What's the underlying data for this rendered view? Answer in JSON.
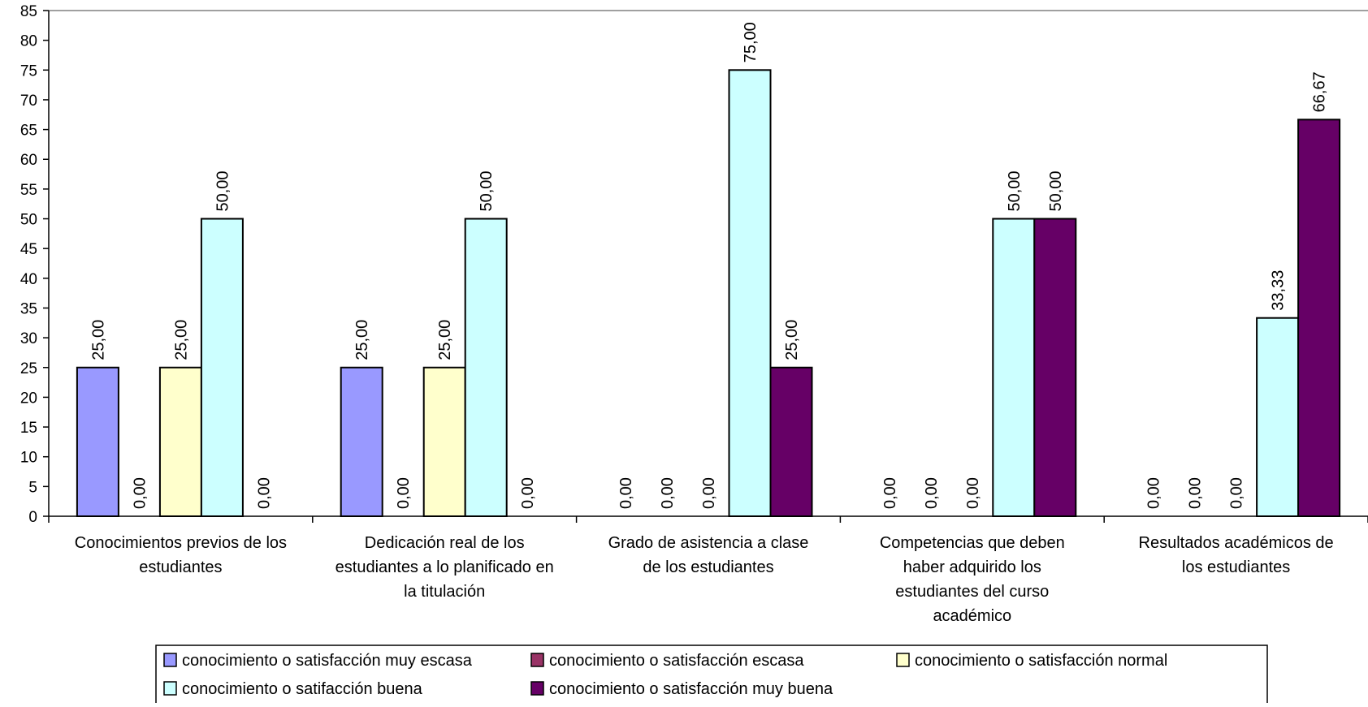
{
  "chart_data": {
    "type": "bar",
    "ylim": [
      0,
      85
    ],
    "ytick_step": 5,
    "grid": false,
    "legend_position": "bottom",
    "categories": [
      "Conocimientos previos de los estudiantes",
      "Dedicación real de los estudiantes a lo planificado en la titulación",
      "Grado de asistencia a clase de los estudiantes",
      "Competencias que deben haber adquirido los estudiantes del curso académico",
      "Resultados académicos de los estudiantes"
    ],
    "category_lines": [
      [
        "Conocimientos previos de los",
        "estudiantes"
      ],
      [
        "Dedicación real de los",
        "estudiantes a lo planificado en",
        "la titulación"
      ],
      [
        "Grado de asistencia a clase",
        "de los estudiantes"
      ],
      [
        "Competencias que deben",
        "haber adquirido los",
        "estudiantes del curso",
        "académico"
      ],
      [
        "Resultados académicos de",
        "los estudiantes"
      ]
    ],
    "series": [
      {
        "name": "conocimiento o satisfacción muy escasa",
        "color": "#9999FF",
        "values": [
          25,
          25,
          0,
          0,
          0
        ],
        "labels": [
          "25,00",
          "25,00",
          "0,00",
          "0,00",
          "0,00"
        ]
      },
      {
        "name": "conocimiento o satisfacción escasa",
        "color": "#993366",
        "values": [
          0,
          0,
          0,
          0,
          0
        ],
        "labels": [
          "0,00",
          "0,00",
          "0,00",
          "0,00",
          "0,00"
        ]
      },
      {
        "name": "conocimiento o satisfacción normal",
        "color": "#FFFFCC",
        "values": [
          25,
          25,
          0,
          0,
          0
        ],
        "labels": [
          "25,00",
          "25,00",
          "0,00",
          "0,00",
          "0,00"
        ]
      },
      {
        "name": "conocimiento o satifacción buena",
        "color": "#CCFFFF",
        "values": [
          50,
          50,
          75,
          50,
          33.33
        ],
        "labels": [
          "50,00",
          "50,00",
          "75,00",
          "50,00",
          "33,33"
        ]
      },
      {
        "name": "conocimiento o satisfacción muy buena",
        "color": "#660066",
        "values": [
          0,
          0,
          25,
          50,
          66.67
        ],
        "labels": [
          "0,00",
          "0,00",
          "25,00",
          "50,00",
          "66,67"
        ]
      }
    ]
  }
}
